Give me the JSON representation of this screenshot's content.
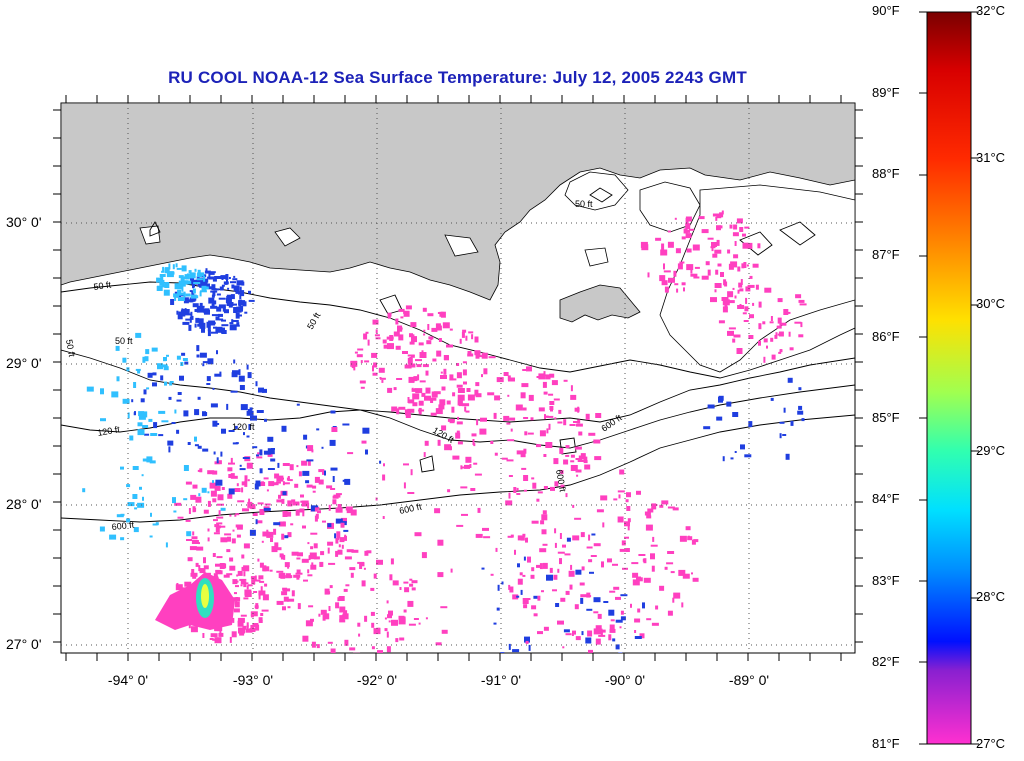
{
  "title": "RU COOL  NOAA-12  Sea Surface Temperature:  July 12, 2005 2243 GMT",
  "latitude_labels": [
    "30° 0'",
    "29° 0'",
    "28° 0'",
    "27° 0'"
  ],
  "longitude_labels": [
    "-94° 0'",
    "-93° 0'",
    "-92° 0'",
    "-91° 0'",
    "-90° 0'",
    "-89° 0'"
  ],
  "contour_labels": [
    "50 ft",
    "50 ft",
    "50 ft",
    "50 ft",
    "50 ft",
    "120 ft",
    "120 ft",
    "120 ft",
    "600 ft",
    "600 ft",
    "600 ft",
    "600 ft"
  ],
  "colorbar": {
    "fahrenheit": [
      "90°F",
      "89°F",
      "88°F",
      "87°F",
      "86°F",
      "85°F",
      "84°F",
      "83°F",
      "82°F",
      "81°F"
    ],
    "celsius": [
      "32°C",
      "31°C",
      "30°C",
      "29°C",
      "28°C",
      "27°C"
    ],
    "range_f": [
      81,
      90
    ],
    "range_c": [
      27,
      32
    ]
  },
  "map": {
    "region": "Northern Gulf of Mexico — Louisiana coast",
    "lat_range": [
      26.9,
      30.85
    ],
    "lon_range": [
      -94.55,
      -88.2
    ],
    "land_color": "#c8c8c8",
    "water_color": "#ffffff"
  },
  "colors": {
    "title": "#1c22b8",
    "warm_pixels": "#ff40c0",
    "cool_pixels": "#1f3ee0"
  }
}
